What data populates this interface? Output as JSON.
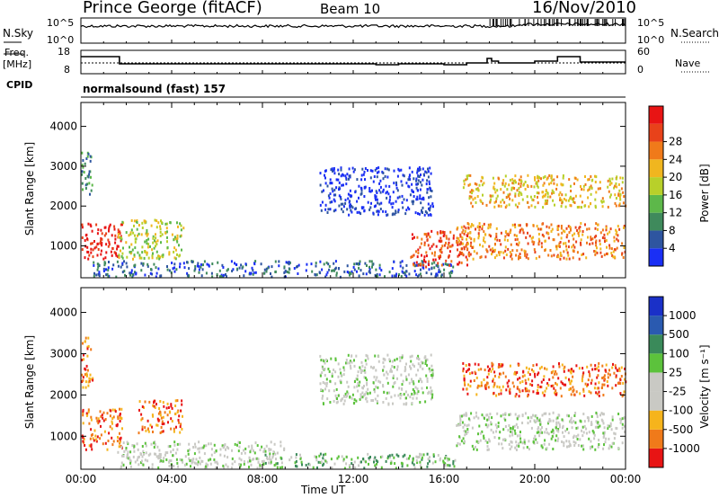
{
  "header": {
    "title": "Prince George (fitACF)",
    "beam": "Beam 10",
    "date": "16/Nov/2010"
  },
  "noise_panel": {
    "left_label": "N.Sky",
    "right_label": "N.Search",
    "ticks": [
      "10^5",
      "10^0"
    ]
  },
  "freq_panel": {
    "left_label_1": "Freq.",
    "left_label_2": "[MHz]",
    "left_ticks": [
      "18",
      "8"
    ],
    "right_label": "Nave",
    "right_ticks": [
      "60",
      "0"
    ]
  },
  "cpid": {
    "label": "CPID",
    "value": "normalsound (fast) 157"
  },
  "colors": {
    "power": [
      "#1a2ff5",
      "#2e55a0",
      "#3f8a5c",
      "#5db84a",
      "#b8d02a",
      "#f0b61f",
      "#f07a1a",
      "#e8421a",
      "#e81414"
    ],
    "velocity": [
      "#e81414",
      "#f07a1a",
      "#f6b41c",
      "#c9c9c4",
      "#c9c9c4",
      "#5cc23c",
      "#3a8a5a",
      "#2a5ab0",
      "#1a30c8"
    ]
  },
  "chart_data": [
    {
      "type": "heatmap",
      "name": "power",
      "ylabel": "Slant Range [km]",
      "yticks": [
        "1000",
        "2000",
        "3000",
        "4000"
      ],
      "ylim": [
        200,
        4600
      ],
      "xlim_hours": [
        0,
        24
      ],
      "colorbar_label": "Power [dB]",
      "colorbar_ticks": [
        "4",
        "8",
        "12",
        "16",
        "20",
        "24",
        "28"
      ],
      "regions": [
        {
          "t0": 0.0,
          "t1": 1.8,
          "r0": 700,
          "r1": 1600,
          "level": 8
        },
        {
          "t0": 0.0,
          "t1": 0.5,
          "r0": 2300,
          "r1": 3400,
          "level": 2
        },
        {
          "t0": 1.6,
          "t1": 4.5,
          "r0": 700,
          "r1": 1700,
          "level": 4
        },
        {
          "t0": 0.5,
          "t1": 16.5,
          "r0": 250,
          "r1": 650,
          "level": 1
        },
        {
          "t0": 10.5,
          "t1": 15.5,
          "r0": 1800,
          "r1": 3000,
          "level": 0
        },
        {
          "t0": 14.5,
          "t1": 17.0,
          "r0": 500,
          "r1": 1400,
          "level": 7
        },
        {
          "t0": 16.5,
          "t1": 24.0,
          "r0": 700,
          "r1": 1600,
          "level": 6
        },
        {
          "t0": 16.8,
          "t1": 24.0,
          "r0": 2000,
          "r1": 2800,
          "level": 5
        }
      ]
    },
    {
      "type": "heatmap",
      "name": "velocity",
      "ylabel": "Slant Range [km]",
      "yticks": [
        "1000",
        "2000",
        "3000",
        "4000"
      ],
      "ylim": [
        200,
        4600
      ],
      "xlim_hours": [
        0,
        24
      ],
      "xticks": [
        "00:00",
        "04:00",
        "08:00",
        "12:00",
        "16:00",
        "20:00",
        "00:00"
      ],
      "xlabel": "Time UT",
      "colorbar_label": "Velocity [m s⁻¹]",
      "colorbar_ticks": [
        "-1000",
        "-500",
        "-100",
        "-25",
        "25",
        "100",
        "500",
        "1000"
      ],
      "regions": [
        {
          "t0": 0.0,
          "t1": 1.8,
          "r0": 700,
          "r1": 1700,
          "level": 1
        },
        {
          "t0": 0.0,
          "t1": 0.5,
          "r0": 2200,
          "r1": 3500,
          "level": 1
        },
        {
          "t0": 2.5,
          "t1": 4.5,
          "r0": 1100,
          "r1": 1900,
          "level": 1
        },
        {
          "t0": 1.6,
          "t1": 9.0,
          "r0": 250,
          "r1": 900,
          "level": 4
        },
        {
          "t0": 8.0,
          "t1": 16.5,
          "r0": 250,
          "r1": 600,
          "level": 5
        },
        {
          "t0": 10.5,
          "t1": 15.5,
          "r0": 1800,
          "r1": 3000,
          "level": 4
        },
        {
          "t0": 16.5,
          "t1": 24.0,
          "r0": 700,
          "r1": 1600,
          "level": 4
        },
        {
          "t0": 16.8,
          "t1": 24.0,
          "r0": 2000,
          "r1": 2800,
          "level": 1
        }
      ]
    }
  ]
}
